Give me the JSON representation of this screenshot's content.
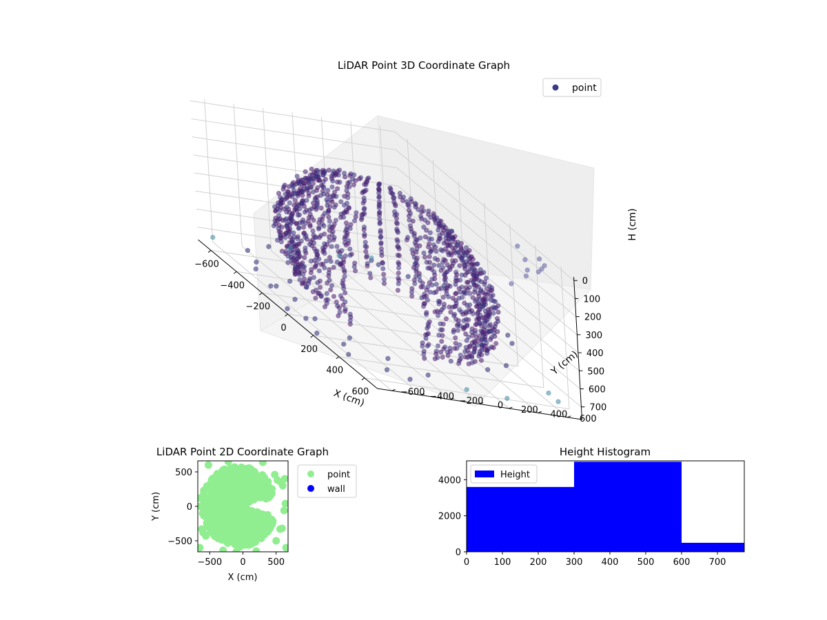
{
  "colors": {
    "point3d_cold": "#440154",
    "point3d_mid": "#3b528b",
    "point3d_warm": "#5ec962",
    "point2d": "#90ee90",
    "wall": "#0000ff",
    "histogram": "#0000ff",
    "pane_bg": "#f2f2f2",
    "grid": "#d0d0d0"
  },
  "chart_data": [
    {
      "type": "scatter",
      "projection": "3d",
      "title": "LiDAR Point 3D Coordinate Graph",
      "xlabel": "X (cm)",
      "ylabel": "Y (cm)",
      "zlabel": "H (cm)",
      "xlim": [
        -700,
        700
      ],
      "ylim": [
        -700,
        700
      ],
      "zlim": [
        770,
        -20
      ],
      "z_inverted": true,
      "xticks": [
        -600,
        -400,
        -200,
        0,
        200,
        400,
        600
      ],
      "xtick_labels": [
        "−600",
        "−400",
        "−200",
        "0",
        "200",
        "400",
        "600"
      ],
      "yticks": [
        -600,
        -400,
        -200,
        0,
        200,
        400,
        600
      ],
      "ytick_labels": [
        "−600",
        "−400",
        "−200",
        "0",
        "200",
        "400",
        "600"
      ],
      "zticks": [
        0,
        100,
        200,
        300,
        400,
        500,
        600,
        700
      ],
      "ztick_labels": [
        "0",
        "100",
        "200",
        "300",
        "400",
        "500",
        "600",
        "700"
      ],
      "legend": {
        "placement": "upper-right",
        "entries": [
          "point"
        ]
      },
      "grid": true,
      "series": [
        {
          "name": "point",
          "description_shape": "dome of concentric rings, radius up to about 600, height 0-700",
          "points": [
            [
              -650,
              -640,
              720
            ],
            [
              -600,
              -300,
              700
            ],
            [
              -520,
              100,
              690
            ],
            [
              -480,
              350,
              650
            ],
            [
              -400,
              -560,
              700
            ],
            [
              -350,
              520,
              640
            ],
            [
              -300,
              -650,
              690
            ],
            [
              -250,
              600,
              600
            ],
            [
              -150,
              -680,
              700
            ],
            [
              0,
              650,
              560
            ],
            [
              150,
              -640,
              700
            ],
            [
              250,
              600,
              580
            ],
            [
              330,
              -560,
              690
            ],
            [
              400,
              500,
              550
            ],
            [
              480,
              -430,
              700
            ],
            [
              520,
              350,
              620
            ],
            [
              600,
              -260,
              700
            ],
            [
              640,
              120,
              600
            ],
            [
              660,
              -50,
              720
            ],
            [
              620,
              450,
              20
            ],
            [
              580,
              560,
              40
            ],
            [
              560,
              620,
              10
            ],
            [
              500,
              650,
              60
            ],
            [
              450,
              680,
              30
            ],
            [
              380,
              640,
              80
            ],
            [
              300,
              660,
              50
            ],
            [
              660,
              300,
              90
            ],
            [
              690,
              380,
              20
            ],
            [
              -620,
              420,
              700
            ],
            [
              -660,
              -100,
              720
            ],
            [
              -560,
              -480,
              720
            ],
            [
              -200,
              -600,
              720
            ],
            [
              100,
              -660,
              730
            ],
            [
              350,
              -620,
              720
            ],
            [
              550,
              -500,
              730
            ],
            [
              640,
              -420,
              720
            ],
            [
              -450,
              -250,
              720
            ],
            [
              -300,
              -420,
              730
            ],
            [
              -100,
              -560,
              730
            ],
            [
              420,
              -650,
              740
            ],
            [
              680,
              560,
              700
            ],
            [
              690,
              200,
              720
            ],
            [
              700,
              480,
              650
            ],
            [
              -680,
              250,
              730
            ],
            [
              -690,
              480,
              720
            ],
            [
              0,
              -700,
              740
            ],
            [
              -540,
              600,
              720
            ],
            [
              230,
              -700,
              740
            ]
          ]
        }
      ]
    },
    {
      "type": "scatter",
      "title": "LiDAR Point 2D Coordinate Graph",
      "xlabel": "X (cm)",
      "ylabel": "Y (cm)",
      "xlim": [
        -680,
        680
      ],
      "ylim": [
        -660,
        660
      ],
      "xticks": [
        -500,
        0,
        500
      ],
      "xtick_labels": [
        "−500",
        "0",
        "500"
      ],
      "yticks": [
        -500,
        0,
        500
      ],
      "ytick_labels": [
        "−500",
        "0",
        "500"
      ],
      "legend": {
        "placement": "outside-right",
        "entries": [
          "point",
          "wall"
        ]
      },
      "grid": false,
      "series": [
        {
          "name": "point",
          "points": [
            [
              -650,
              120
            ],
            [
              -640,
              0
            ],
            [
              -620,
              -330
            ],
            [
              -560,
              -430
            ],
            [
              -600,
              -380
            ],
            [
              -520,
              600
            ],
            [
              -300,
              -640
            ],
            [
              -100,
              -660
            ],
            [
              200,
              -650
            ],
            [
              480,
              460
            ],
            [
              520,
              380
            ],
            [
              570,
              350
            ],
            [
              600,
              300
            ],
            [
              630,
              400
            ],
            [
              640,
              40
            ],
            [
              620,
              -60
            ],
            [
              590,
              -320
            ],
            [
              500,
              -500
            ],
            [
              300,
              640
            ],
            [
              -220,
              650
            ],
            [
              -650,
              -600
            ],
            [
              650,
              -600
            ],
            [
              560,
              -330
            ],
            [
              -590,
              230
            ]
          ]
        },
        {
          "name": "wall",
          "points": []
        }
      ]
    },
    {
      "type": "bar",
      "subtype": "histogram",
      "title": "Height Histogram",
      "xlabel": "",
      "ylabel": "",
      "xlim": [
        0,
        775
      ],
      "ylim": [
        0,
        5050
      ],
      "xticks": [
        0,
        100,
        200,
        300,
        400,
        500,
        600,
        700
      ],
      "xtick_labels": [
        "0",
        "100",
        "200",
        "300",
        "400",
        "500",
        "600",
        "700"
      ],
      "yticks": [
        0,
        2000,
        4000
      ],
      "ytick_labels": [
        "0",
        "2000",
        "4000"
      ],
      "legend": {
        "placement": "upper-left",
        "entries": [
          "Height"
        ]
      },
      "grid": false,
      "bins": [
        [
          0,
          300
        ],
        [
          300,
          600
        ],
        [
          600,
          775
        ]
      ],
      "series": [
        {
          "name": "Height",
          "values": [
            3600,
            5000,
            500
          ]
        }
      ]
    }
  ]
}
